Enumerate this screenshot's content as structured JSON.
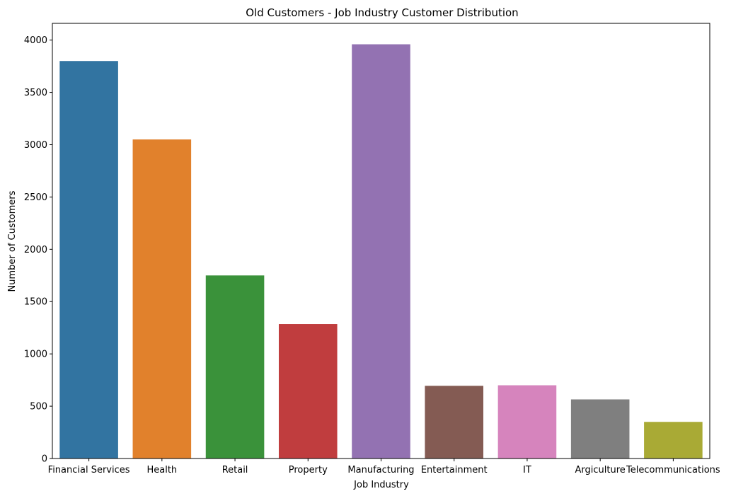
{
  "chart_data": {
    "type": "bar",
    "title": "Old Customers - Job Industry Customer Distribution",
    "xlabel": "Job Industry",
    "ylabel": "Number of Customers",
    "categories": [
      "Financial Services",
      "Health",
      "Retail",
      "Property",
      "Manufacturing",
      "Entertainment",
      "IT",
      "Argiculture",
      "Telecommunications"
    ],
    "values": [
      3800,
      3050,
      1750,
      1285,
      3960,
      695,
      700,
      565,
      350
    ],
    "colors": [
      "#3274a1",
      "#e1812c",
      "#3a923a",
      "#c03d3e",
      "#9372b2",
      "#845b53",
      "#d684bd",
      "#7f7f7f",
      "#a9aa35"
    ],
    "ylim": [
      0,
      4160
    ],
    "yticks": [
      0,
      500,
      1000,
      1500,
      2000,
      2500,
      3000,
      3500,
      4000
    ],
    "grid": false
  }
}
